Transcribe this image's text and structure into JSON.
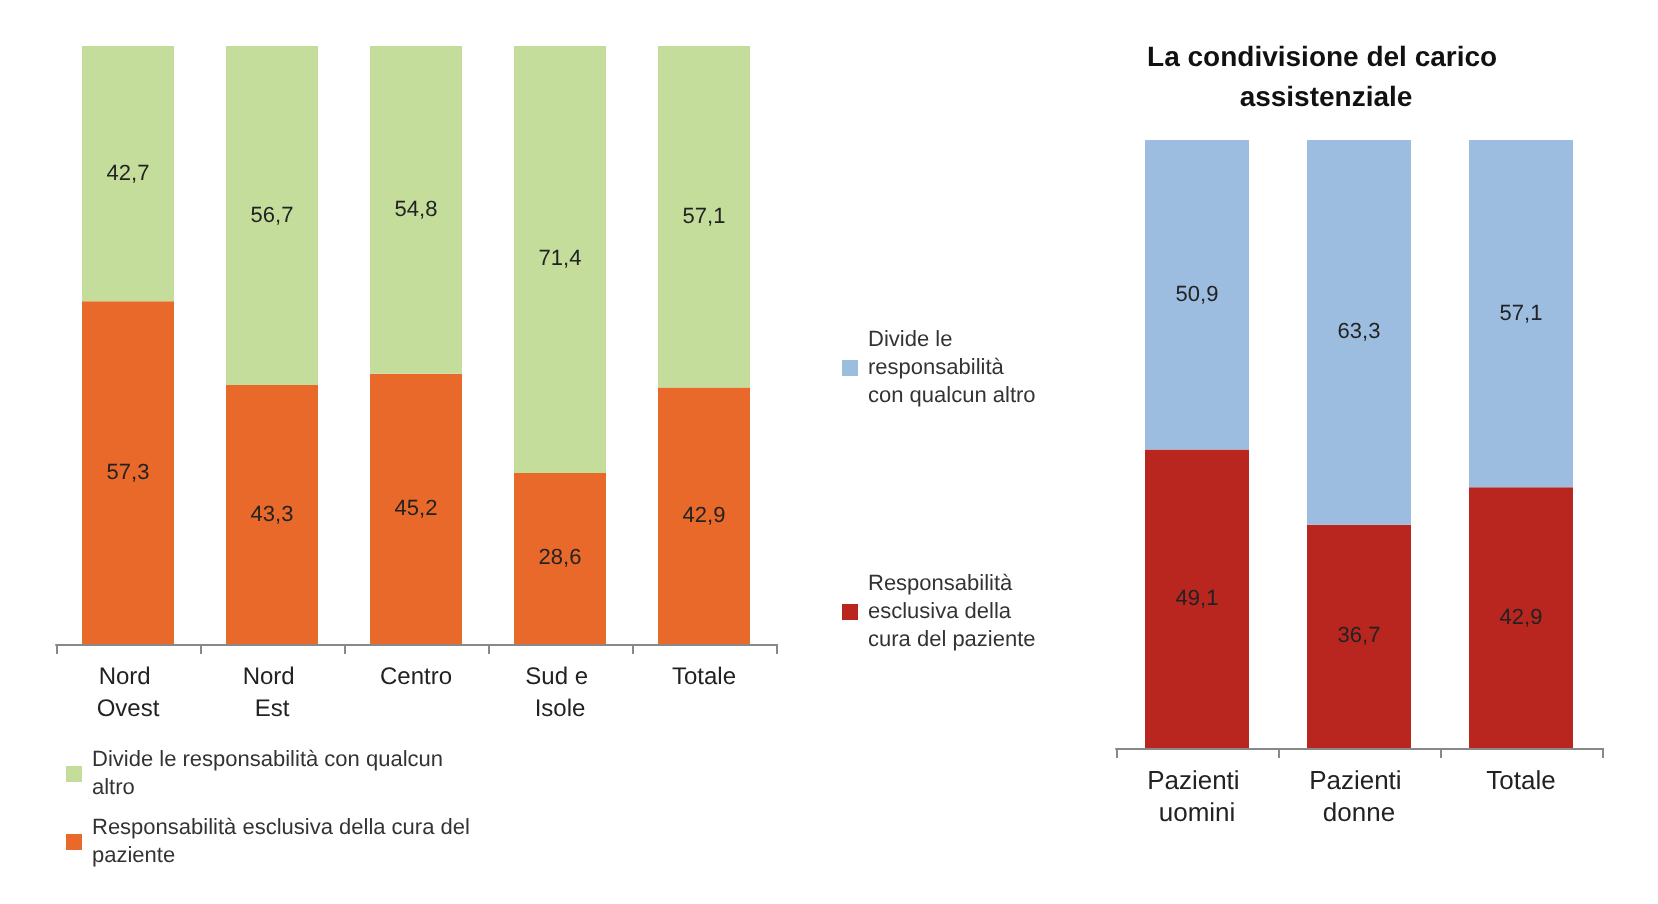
{
  "chart_data": [
    {
      "type": "bar",
      "stacked": true,
      "categories": [
        "Nord Ovest",
        "Nord Est",
        "Centro",
        "Sud e Isole",
        "Totale"
      ],
      "series": [
        {
          "name": "Responsabilità esclusiva della cura del paziente",
          "color": "#e8692a",
          "values": [
            57.3,
            43.3,
            45.2,
            28.6,
            42.9
          ],
          "value_labels": [
            "57,3",
            "43,3",
            "45,2",
            "28,6",
            "42,9"
          ]
        },
        {
          "name": "Divide le responsabilità con qualcun altro",
          "color": "#c4dd9b",
          "values": [
            42.7,
            56.7,
            54.8,
            71.4,
            57.1
          ],
          "value_labels": [
            "42,7",
            "56,7",
            "54,8",
            "71,4",
            "57,1"
          ]
        }
      ],
      "legend": "bottom",
      "tick_labels": "x"
    },
    {
      "type": "bar",
      "stacked": true,
      "title": "La condivisione del carico assistenziale",
      "categories": [
        "Pazienti uomini",
        "Pazienti donne",
        "Totale"
      ],
      "series": [
        {
          "name": "Responsabilità esclusiva della cura del paziente",
          "color": "#b8261f",
          "values": [
            49.1,
            36.7,
            42.9
          ],
          "value_labels": [
            "49,1",
            "36,7",
            "42,9"
          ]
        },
        {
          "name": "Divide le responsabilità con qualcun altro",
          "color": "#9dbde0",
          "values": [
            50.9,
            63.3,
            57.1
          ],
          "value_labels": [
            "50,9",
            "63,3",
            "57,1"
          ]
        }
      ],
      "legend": "left",
      "tick_labels": "x"
    }
  ]
}
